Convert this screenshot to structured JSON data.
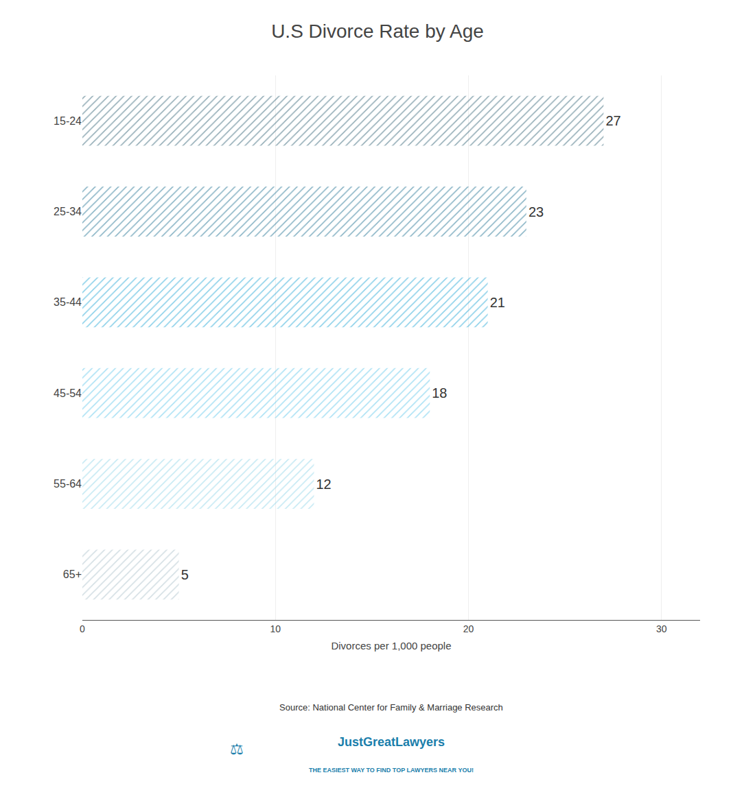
{
  "chart_data": {
    "type": "bar",
    "orientation": "horizontal",
    "title": "U.S Divorce Rate by Age",
    "xlabel": "Divorces per 1,000 people",
    "categories": [
      "15-24",
      "25-34",
      "35-44",
      "45-54",
      "55-64",
      "65+"
    ],
    "values": [
      27,
      23,
      21,
      18,
      12,
      5
    ],
    "colors": [
      "#2d5f72",
      "#1a6e8f",
      "#1ba3d4",
      "#5bc5ea",
      "#8dd4e8",
      "#a9bfc9"
    ],
    "xlim": [
      0,
      32
    ],
    "xticks": [
      0,
      10,
      20,
      30
    ],
    "grid": true,
    "data_labels": true,
    "annotations": [
      "Source: National Center for Family & Marriage Research",
      "JustGreatLawyers",
      "THE EASIEST WAY TO FIND TOP LAWYERS NEAR YOU!",
      "⚖"
    ]
  }
}
